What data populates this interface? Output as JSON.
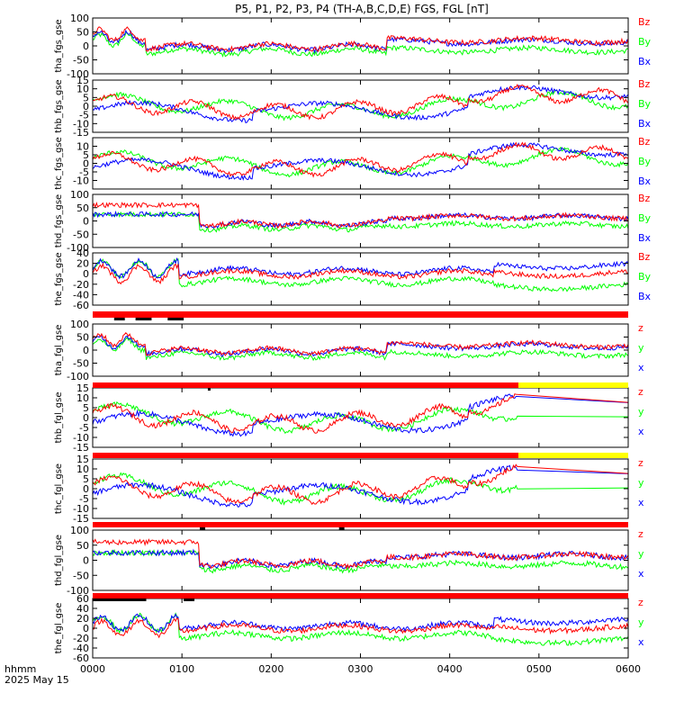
{
  "title": "P5, P1, P2, P3, P4 (TH-A,B,C,D,E) FGS, FGL [nT]",
  "footer": {
    "time_unit": "hhmm",
    "date": "2025 May 15"
  },
  "colors": {
    "x": "#0000ff",
    "y": "#00ff00",
    "z": "#ff0000",
    "bar_red": "#ff0000",
    "bar_yellow": "#ffff00",
    "bar_black": "#000000"
  },
  "chart_data": {
    "type": "line",
    "x_range": [
      "0000",
      "0600"
    ],
    "x_ticks": [
      "0000",
      "0100",
      "0200",
      "0300",
      "0400",
      "0500",
      "0600"
    ],
    "panels": [
      {
        "ylabel": "tha_fgs_gse",
        "ylim": [
          -100,
          100
        ],
        "yticks": [
          100,
          50,
          0,
          -50,
          -100
        ],
        "legend": [
          "Bz",
          "By",
          "Bx"
        ],
        "segments": [
          [
            0.1,
            37,
            47,
            23
          ]
        ],
        "end": 1.0
      },
      {
        "ylabel": "thb_fgs_gse",
        "ylim": [
          -15,
          15
        ],
        "yticks": [
          15,
          10,
          5,
          0,
          -5,
          -10,
          -15
        ],
        "legend": [
          "Bz",
          "By",
          "Bx"
        ],
        "segments": [],
        "end": 1.0
      },
      {
        "ylabel": "thc_fgs_gse",
        "ylim": [
          -15,
          15
        ],
        "yticks": [
          10,
          5,
          0,
          -5,
          -10
        ],
        "legend": [
          "Bz",
          "By",
          "Bx"
        ],
        "segments": [],
        "end": 1.0
      },
      {
        "ylabel": "thd_fgs_gse",
        "ylim": [
          -100,
          100
        ],
        "yticks": [
          100,
          50,
          0,
          -50,
          -100
        ],
        "legend": [
          "Bz",
          "By",
          "Bx"
        ],
        "segments": [
          [
            0.1,
            62,
            50,
            22
          ]
        ],
        "end": 1.0
      },
      {
        "ylabel": "the_fgs_gse",
        "ylim": [
          -60,
          40
        ],
        "yticks": [
          40,
          20,
          0,
          -20,
          -40,
          -60
        ],
        "legend": [
          "Bz",
          "By",
          "Bx"
        ],
        "segments": [
          [
            0.1,
            15,
            20,
            0
          ]
        ],
        "end": 1.0
      },
      {
        "ylabel": "tha_fgl_gse",
        "ylim": [
          -100,
          100
        ],
        "yticks": [
          100,
          50,
          0,
          -50,
          -100
        ],
        "legend": [
          "z",
          "y",
          "x"
        ],
        "segments": [
          [
            0.1,
            37,
            47,
            23
          ]
        ],
        "end": 1.0
      },
      {
        "ylabel": "thb_fgl_gse",
        "ylim": [
          -15,
          15
        ],
        "yticks": [
          15,
          10,
          5,
          0,
          -5,
          -10,
          -15
        ],
        "legend": [
          "z",
          "y",
          "x"
        ],
        "segments": [],
        "end": 0.795
      },
      {
        "ylabel": "thc_fgl_gse",
        "ylim": [
          -15,
          15
        ],
        "yticks": [
          15,
          10,
          5,
          0,
          -5,
          -10,
          -15
        ],
        "legend": [
          "z",
          "y",
          "x"
        ],
        "segments": [],
        "end": 0.795
      },
      {
        "ylabel": "thd_fgl_gse",
        "ylim": [
          -100,
          100
        ],
        "yticks": [
          100,
          50,
          0,
          -50,
          -100
        ],
        "legend": [
          "z",
          "y",
          "x"
        ],
        "segments": [
          [
            0.1,
            62,
            50,
            22
          ]
        ],
        "end": 1.0
      },
      {
        "ylabel": "the_fgl_gse",
        "ylim": [
          -60,
          60
        ],
        "yticks": [
          60,
          40,
          20,
          0,
          -20,
          -40,
          -60
        ],
        "legend": [
          "z",
          "y",
          "x"
        ],
        "segments": [
          [
            0.1,
            15,
            20,
            0
          ]
        ],
        "end": 1.0
      }
    ],
    "status_bars": [
      {
        "after_panel": 5,
        "segments": [
          [
            "red",
            0,
            1.0
          ]
        ],
        "ticks": [
          [
            0.04,
            0.06
          ],
          [
            0.08,
            0.11
          ],
          [
            0.14,
            0.17
          ]
        ]
      },
      {
        "after_panel": 6,
        "segments": [
          [
            "red",
            0,
            0.795
          ],
          [
            "yellow",
            0.795,
            1.0
          ]
        ],
        "ticks": [
          [
            0.215,
            0.22
          ]
        ]
      },
      {
        "after_panel": 7,
        "segments": [
          [
            "red",
            0,
            0.795
          ],
          [
            "yellow",
            0.795,
            1.0
          ]
        ],
        "ticks": []
      },
      {
        "after_panel": 8,
        "segments": [
          [
            "red",
            0,
            1.0
          ]
        ],
        "ticks": [
          [
            0.2,
            0.21
          ],
          [
            0.46,
            0.47
          ]
        ]
      },
      {
        "after_panel": 9,
        "segments": [
          [
            "red",
            0,
            1.0
          ]
        ],
        "ticks": [
          [
            0.0,
            0.1
          ],
          [
            0.17,
            0.19
          ]
        ]
      }
    ]
  }
}
